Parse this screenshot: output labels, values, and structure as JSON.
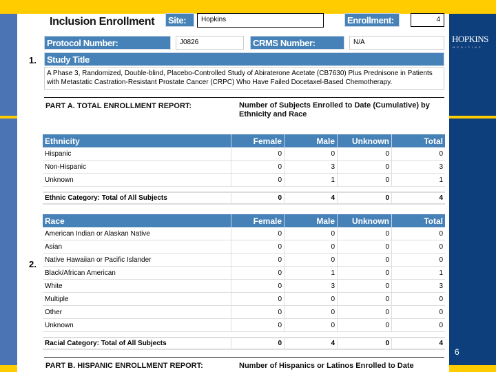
{
  "slide": {
    "logo_text": "HOPKINS",
    "logo_sub": "MEDICINE",
    "page_number": "6",
    "colors": {
      "yellow": "#ffcc00",
      "navy": "#0d3f7c",
      "header_blue": "#4682b8"
    }
  },
  "form": {
    "title": "Inclusion Enrollment",
    "site_label": "Site:",
    "site_value": "Hopkins",
    "enrollment_label": "Enrollment:",
    "enrollment_value": "4",
    "protocol_label": "Protocol Number:",
    "protocol_value": "J0826",
    "crms_label": "CRMS Number:",
    "crms_value": "N/A",
    "section1": "1.",
    "section2": "2.",
    "study_title_label": "Study Title",
    "study_title": "A Phase 3, Randomized, Double-blind, Placebo-Controlled Study of Abiraterone Acetate (CB7630) Plus Prednisone in Patients with Metastatic Castration-Resistant Prostate Cancer (CRPC) Who Have Failed Docetaxel-Based Chemotherapy.",
    "part_a": "PART A. TOTAL ENROLLMENT REPORT:",
    "part_a_desc": "Number of Subjects Enrolled to Date (Cumulative) by Ethnicity and Race",
    "part_b": "PART B. HISPANIC ENROLLMENT REPORT:",
    "part_b_desc": "Number of Hispanics or Latinos Enrolled to Date"
  },
  "ethnicity": {
    "headers": [
      "Ethnicity",
      "Female",
      "Male",
      "Unknown",
      "Total"
    ],
    "rows": [
      [
        "Hispanic",
        "0",
        "0",
        "0",
        "0"
      ],
      [
        "Non-Hispanic",
        "0",
        "3",
        "0",
        "3"
      ],
      [
        "Unknown",
        "0",
        "1",
        "0",
        "1"
      ]
    ],
    "total": [
      "Ethnic Category: Total of All Subjects",
      "0",
      "4",
      "0",
      "4"
    ]
  },
  "race": {
    "headers": [
      "Race",
      "Female",
      "Male",
      "Unknown",
      "Total"
    ],
    "rows": [
      [
        "American Indian or Alaskan Native",
        "0",
        "0",
        "0",
        "0"
      ],
      [
        "Asian",
        "0",
        "0",
        "0",
        "0"
      ],
      [
        "Native Hawaiian or Pacific Islander",
        "0",
        "0",
        "0",
        "0"
      ],
      [
        "Black/African American",
        "0",
        "1",
        "0",
        "1"
      ],
      [
        "White",
        "0",
        "3",
        "0",
        "3"
      ],
      [
        "Multiple",
        "0",
        "0",
        "0",
        "0"
      ],
      [
        "Other",
        "0",
        "0",
        "0",
        "0"
      ],
      [
        "Unknown",
        "0",
        "0",
        "0",
        "0"
      ]
    ],
    "total": [
      "Racial Category: Total of All Subjects",
      "0",
      "4",
      "0",
      "4"
    ]
  }
}
